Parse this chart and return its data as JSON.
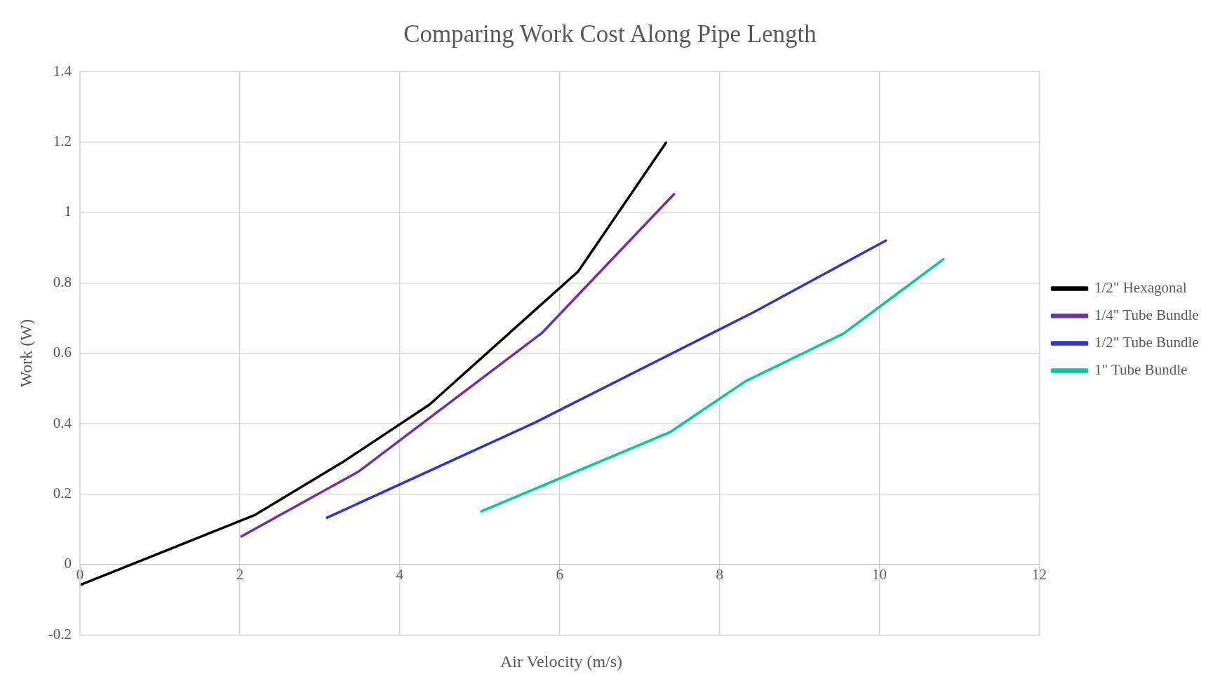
{
  "chart_data": {
    "type": "line",
    "title": "Comparing Work Cost Along Pipe Length",
    "xlabel": "Air Velocity (m/s)",
    "ylabel": "Work (W)",
    "xlim": [
      0,
      12
    ],
    "xticks": [
      0,
      2,
      4,
      6,
      8,
      10,
      12
    ],
    "ylim": [
      -0.2,
      1.4
    ],
    "yticks": [
      -0.2,
      0,
      0.2,
      0.4,
      0.6,
      0.8,
      1,
      1.2,
      1.4
    ],
    "grid": true,
    "legend": "right",
    "marker": "none",
    "line_style": "solid",
    "series": [
      {
        "name": "1/2\" Hexagonal",
        "color": "#000000",
        "x": [
          0,
          2.18,
          3.28,
          4.37,
          6.23,
          7.33
        ],
        "values": [
          -0.058,
          0.14,
          0.29,
          0.454,
          0.832,
          1.198
        ]
      },
      {
        "name": "1/4\" Tube Bundle",
        "color": "#7030a0",
        "x": [
          2.02,
          3.49,
          5.78,
          7.43
        ],
        "values": [
          0.08,
          0.265,
          0.658,
          1.052
        ]
      },
      {
        "name": "1/2\" Tube Bundle",
        "color": "#3333cc",
        "x": [
          3.09,
          5.68,
          8.42,
          10.08
        ],
        "values": [
          0.133,
          0.402,
          0.716,
          0.92
        ]
      },
      {
        "name": "1\" Tube Bundle",
        "color": "#00cc99",
        "x": [
          5.02,
          7.38,
          8.32,
          9.55,
          10.8
        ],
        "values": [
          0.151,
          0.376,
          0.52,
          0.656,
          0.867
        ]
      }
    ]
  }
}
